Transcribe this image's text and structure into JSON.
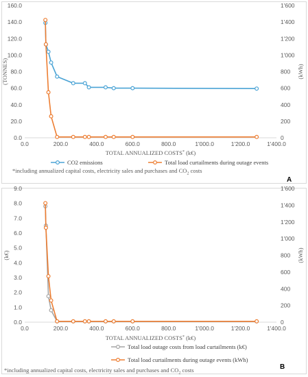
{
  "chart_data": [
    {
      "type": "line",
      "panel": "A",
      "x": [
        115,
        118,
        132,
        147,
        180,
        270,
        335,
        357,
        450,
        495,
        600,
        1290
      ],
      "xlim": [
        0,
        1400
      ],
      "x_ticks": [
        0,
        200,
        400,
        600,
        800,
        1000,
        1200,
        1400
      ],
      "x_tick_labels": [
        "0.0",
        "200.0",
        "400.0",
        "600.0",
        "800.0",
        "1'000.0",
        "1'200.0",
        "1'400.0"
      ],
      "xlabel": "TOTAL ANNUALIZED COSTS",
      "xlabel_sup": "*",
      "xlabel_unit": "(k€)",
      "ylim_left": [
        0,
        160
      ],
      "y_left_ticks": [
        0,
        20,
        40,
        60,
        80,
        100,
        120,
        140,
        160
      ],
      "y_left_tick_labels": [
        "0.0",
        "20.0",
        "40.0",
        "60.0",
        "80.0",
        "100.0",
        "120.0",
        "140.0",
        "160.0"
      ],
      "ylabel_left": "(TONNES)",
      "ylim_right": [
        0,
        1600
      ],
      "y_right_ticks": [
        0,
        200,
        400,
        600,
        800,
        1000,
        1200,
        1400,
        1600
      ],
      "y_right_tick_labels": [
        "0",
        "200",
        "400",
        "600",
        "800",
        "1'000",
        "1'200",
        "1'400",
        "1'600"
      ],
      "ylabel_right": "(kWh)",
      "series": [
        {
          "name": "CO2 emissions",
          "axis": "left",
          "color": "#4aa3d5",
          "values": [
            139,
            113,
            104,
            91,
            74,
            66,
            66,
            61,
            61,
            60,
            60,
            59.5
          ]
        },
        {
          "name": "Total load curtailments during outage events",
          "axis": "right",
          "color": "#ed7d31",
          "values": [
            1425,
            1130,
            550,
            260,
            10,
            10,
            10,
            10,
            10,
            10,
            10,
            10
          ]
        }
      ],
      "legend_position": "bottom",
      "note": "*including annualized capital costs, electricity sales and purchases and CO",
      "note_sub": "2",
      "note_tail": " costs",
      "panel_label": "A"
    },
    {
      "type": "line",
      "panel": "B",
      "x": [
        115,
        118,
        132,
        147,
        180,
        270,
        335,
        357,
        450,
        495,
        600,
        1290
      ],
      "xlim": [
        0,
        1400
      ],
      "x_ticks": [
        0,
        200,
        400,
        600,
        800,
        1000,
        1200,
        1400
      ],
      "x_tick_labels": [
        "0.0",
        "200.0",
        "400.0",
        "600.0",
        "800.0",
        "1'000.0",
        "1'200.0",
        "1'400.0"
      ],
      "xlabel": "TOTAL ANNUALIZED COSTS",
      "xlabel_sup": "*",
      "xlabel_unit": "(k€)",
      "ylim_left": [
        0,
        9
      ],
      "y_left_ticks": [
        0,
        1,
        2,
        3,
        4,
        5,
        6,
        7,
        8,
        9
      ],
      "y_left_tick_labels": [
        "0.0",
        "1.0",
        "2.0",
        "3.0",
        "4.0",
        "5.0",
        "6.0",
        "7.0",
        "8.0",
        "9.0"
      ],
      "ylabel_left": "(k€)",
      "ylim_right": [
        0,
        1600
      ],
      "y_right_ticks": [
        0,
        200,
        400,
        600,
        800,
        1000,
        1200,
        1400,
        1600
      ],
      "y_right_tick_labels": [
        "0",
        "200",
        "400",
        "600",
        "800",
        "1'000",
        "1'200",
        "1'400",
        "1'600"
      ],
      "ylabel_right": "(kWh)",
      "series": [
        {
          "name": "Total load outage costs from load curtailments (k€)",
          "axis": "left",
          "color": "#a5a5a5",
          "values": [
            7.8,
            6.5,
            1.75,
            0.8,
            0.05,
            0.05,
            0.05,
            0.05,
            0.05,
            0.05,
            0.05,
            0.05
          ]
        },
        {
          "name": "Total load curtailments during outage events (kWh)",
          "axis": "right",
          "color": "#ed7d31",
          "values": [
            1425,
            1130,
            550,
            260,
            10,
            10,
            10,
            10,
            10,
            10,
            10,
            10
          ]
        }
      ],
      "legend_position": "bottom",
      "note": "*including  annualized capital costs, electricity sales and purchases and CO",
      "note_sub": "2",
      "note_tail": " costs",
      "panel_label": "B"
    }
  ]
}
